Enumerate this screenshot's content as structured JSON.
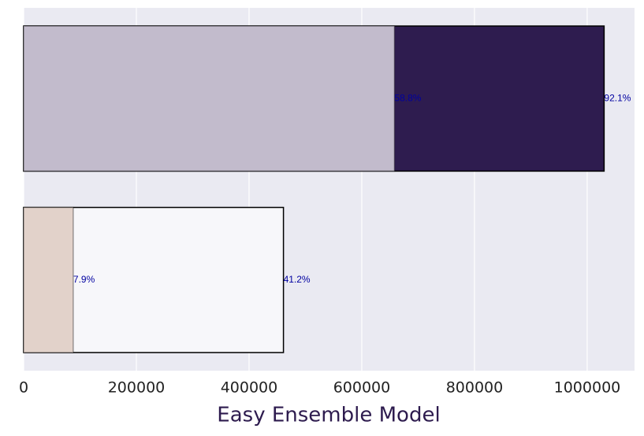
{
  "chart_data": {
    "type": "bar",
    "orientation": "horizontal",
    "overlap": true,
    "x_label": "Easy Ensemble Model",
    "categories": [
      null,
      null
    ],
    "series": [
      {
        "colors": [
          "#2e1c4f",
          "#f7f7fa"
        ],
        "values": [
          1030000,
          461000
        ],
        "annotations": [
          "92.1%",
          "41.2%"
        ]
      },
      {
        "colors": [
          "#c2bbcc",
          "#e2d2ca"
        ],
        "values": [
          658000,
          88000
        ],
        "annotations": [
          "58.8%",
          "7.9%"
        ]
      }
    ],
    "xlim": [
      0,
      1084000
    ],
    "xticks": [
      0,
      200000,
      400000,
      600000,
      800000,
      1000000
    ],
    "grid": true,
    "background": "#eaeaf2"
  }
}
